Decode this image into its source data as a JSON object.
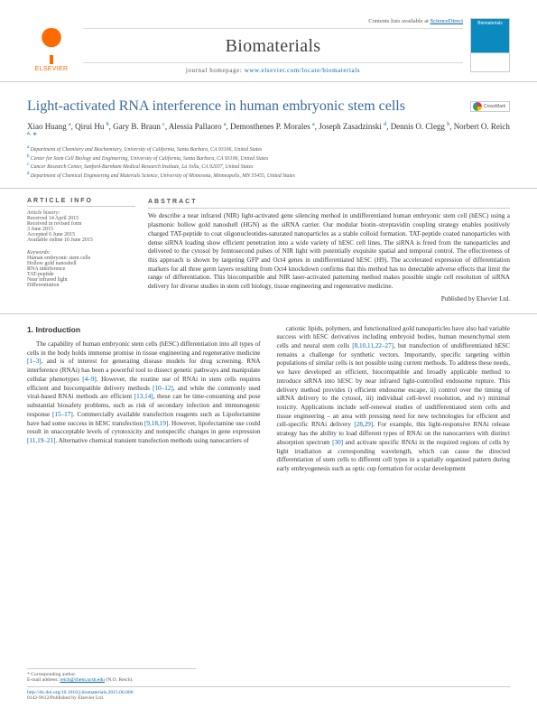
{
  "header": {
    "publisher": "ELSEVIER",
    "contents_line_prefix": "Contents lists available at ",
    "contents_link": "ScienceDirect",
    "journal": "Biomaterials",
    "home_prefix": "journal homepage: ",
    "home_url": "www.elsevier.com/locate/biomaterials",
    "cover_label": "Biomaterials"
  },
  "title": "Light-activated RNA interference in human embryonic stem cells",
  "crossmark": "CrossMark",
  "authors_html": "Xiao Huang <sup>a</sup>, Qirui Hu <sup>b</sup>, Gary B. Braun <sup>c</sup>, Alessia Pallaoro <sup>a</sup>, Demosthenes P. Morales <sup>a</sup>, Joseph Zasadzinski <sup>d</sup>, Dennis O. Clegg <sup>b</sup>, Norbert O. Reich <sup>a,</sup> <span class=\"star\">*</span>",
  "affiliations": [
    "Department of Chemistry and Biochemistry, University of California, Santa Barbara, CA 93106, United States",
    "Center for Stem Cell Biology and Engineering, University of California, Santa Barbara, CA 93106, United States",
    "Cancer Research Center, Sanford-Burnham Medical Research Institute, La Jolla, CA 92037, United States",
    "Department of Chemical Engineering and Materials Science, University of Minnesota, Minneapolis, MN 55455, United States"
  ],
  "aff_markers": [
    "a",
    "b",
    "c",
    "d"
  ],
  "article_info": {
    "heading": "ARTICLE INFO",
    "history_label": "Article history:",
    "history": [
      "Received 14 April 2015",
      "Received in revised form",
      "3 June 2015",
      "Accepted 6 June 2015",
      "Available online 10 June 2015"
    ],
    "kw_label": "Keywords:",
    "keywords": [
      "Human embryonic stem cells",
      "Hollow gold nanoshell",
      "RNA interference",
      "TAT-peptide",
      "Near infrared light",
      "Differentiation"
    ]
  },
  "abstract": {
    "heading": "ABSTRACT",
    "text": "We describe a near infrared (NIR) light-activated gene silencing method in undifferentiated human embryonic stem cell (hESC) using a plasmonic hollow gold nanoshell (HGN) as the siRNA carrier. Our modular biotin–streptavidin coupling strategy enables positively charged TAT-peptide to coat oligonucleotides-saturated nanoparticles as a stable colloid formation. TAT-peptide coated nanoparticles with dense siRNA loading show efficient penetration into a wide variety of hESC cell lines. The siRNA is freed from the nanoparticles and delivered to the cytosol by femtosecond pulses of NIR light with potentially exquisite spatial and temporal control. The effectiveness of this approach is shown by targeting GFP and Oct4 genes in undifferentiated hESC (H9). The accelerated expression of differentiation markers for all three germ layers resulting from Oct4 knockdown confirms that this method has no detectable adverse effects that limit the range of differentiation. This biocompatible and NIR laser-activated patterning method makes possible single cell resolution of siRNA delivery for diverse studies in stem cell biology, tissue engineering and regenerative medicine.",
    "published": "Published by Elsevier Ltd."
  },
  "body": {
    "section_number": "1.",
    "section_title": "Introduction",
    "col1": "The capability of human embryonic stem cells (hESC) differentiation into all types of cells in the body holds immense promise in tissue engineering and regenerative medicine [1–3], and is of interest for generating disease models for drug screening. RNA interference (RNAi) has been a powerful tool to dissect genetic pathways and manipulate cellular phenotypes [4–9]. However, the routine use of RNAi in stem cells requires efficient and biocompatible delivery methods [10–12], and while the commonly used viral-based RNAi methods are efficient [13,14], these can be time-consuming and pose substantial biosafety problems, such as risk of secondary infection and immunogenic response [15–17]. Commercially available transfection reagents such as Lipofectamine have had some success in hESC transfection [9,18,19]. However, lipofectamine use could result in unacceptable levels of cytotoxicity and nonspecific changes in gene expression [11,19–21]. Alternative chemical transient transfection methods using nanocarriers of",
    "col2": "cationic lipids, polymers, and functionalized gold nanoparticles have also had variable success with hESC derivatives including embryoid bodies, human mesenchymal stem cells and neural stem cells [8,10,11,22–27], but transfection of undifferentiated hESC remains a challenge for synthetic vectors. Importantly, specific targeting within populations of similar cells is not possible using current methods. To address these needs, we have developed an efficient, biocompatible and broadly applicable method to introduce siRNA into hESC by near infrared light-controlled endosome rupture. This delivery method provides i) efficient endosome escape, ii) control over the timing of siRNA delivery to the cytosol, iii) individual cell-level resolution, and iv) minimal toxicity. Applications include self-renewal studies of undifferentiated stem cells and tissue engineering – an area with pressing need for new technologies for efficient and cell-specific RNAi delivery [28,29]. For example, this light-responsive RNAi release strategy has the ability to load different types of RNAi on the nanocarriers with distinct absorption spectrum [30] and activate specific RNAi in the required regions of cells by light irradiation at corresponding wavelength, which can cause the directed differentiation of stem cells to different cell types in a spatially organized pattern during early embryogenesis such as optic cup formation for ocular development"
  },
  "refs_col1": [
    "[1–3]",
    "[4–9]",
    "[10–12]",
    "[13,14]",
    "[15–17]",
    "[9,18,19]",
    "[11,19–21]"
  ],
  "refs_col2": [
    "[8,10,11,22–27]",
    "[28,29]",
    "[30]"
  ],
  "footer": {
    "corr_label": "* Corresponding author.",
    "email_label": "E-mail address: ",
    "email": "reich@chem.ucsb.edu",
    "email_who": "(N.O. Reich).",
    "doi": "http://dx.doi.org/10.1016/j.biomaterials.2015.06.006",
    "copyright": "0142-9612/Published by Elsevier Ltd."
  },
  "colors": {
    "title": "#3a6a9a",
    "link": "#0066aa",
    "elsevier": "#ff6a00"
  }
}
